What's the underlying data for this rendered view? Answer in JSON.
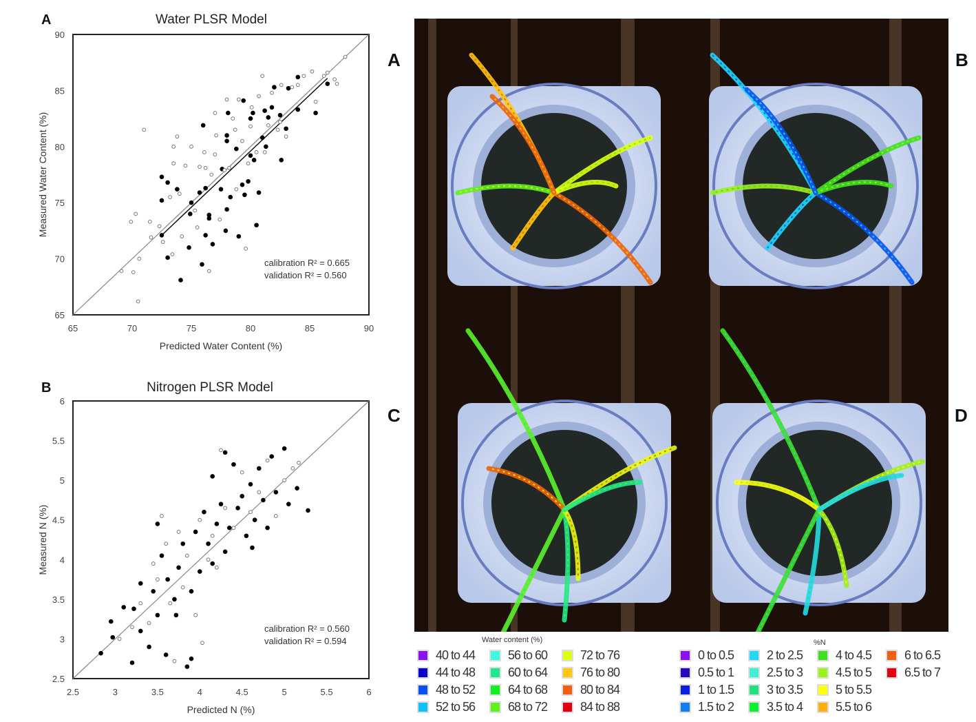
{
  "panel_letters": {
    "chart_a": "A",
    "chart_b": "B",
    "image_a": "A",
    "image_b": "B",
    "image_c": "C",
    "image_d": "D"
  },
  "chart_data": [
    {
      "type": "scatter",
      "title": "Water PLSR Model",
      "xlabel": "Predicted Water Content (%)",
      "ylabel": "Measured Water Content (%)",
      "xlim": [
        65,
        90
      ],
      "ylim": [
        65,
        90
      ],
      "xticks": [
        "65",
        "70",
        "75",
        "80",
        "85",
        "90"
      ],
      "yticks": [
        "65",
        "70",
        "75",
        "80",
        "85",
        "90"
      ],
      "grid": false,
      "annotations": [
        "calibration R² = 0.665",
        "validation R² = 0.560"
      ],
      "one_to_one_line": [
        [
          65,
          65
        ],
        [
          90,
          90
        ]
      ],
      "fit_lines": [
        [
          [
            72.5,
            72.1
          ],
          [
            86.5,
            86.1
          ]
        ],
        [
          [
            72.8,
            72.8
          ],
          [
            86.3,
            86.3
          ]
        ]
      ],
      "series": [
        {
          "marker": "filled",
          "points": [
            [
              72.5,
              72.1
            ],
            [
              72.5,
              75.2
            ],
            [
              72.5,
              77.3
            ],
            [
              73,
              76.8
            ],
            [
              73,
              70.1
            ],
            [
              73.8,
              76.2
            ],
            [
              74.1,
              68.1
            ],
            [
              75,
              75
            ],
            [
              74.9,
              74
            ],
            [
              74.8,
              71
            ],
            [
              75.7,
              75.9
            ],
            [
              76,
              81.9
            ],
            [
              75.9,
              69.5
            ],
            [
              76.2,
              72.1
            ],
            [
              76.2,
              76.3
            ],
            [
              76.5,
              73.6
            ],
            [
              76.5,
              73.9
            ],
            [
              76.8,
              71.3
            ],
            [
              77.5,
              76.2
            ],
            [
              77.6,
              78
            ],
            [
              78,
              80.5
            ],
            [
              78,
              81
            ],
            [
              78.1,
              83
            ],
            [
              78.3,
              75.5
            ],
            [
              78,
              74.4
            ],
            [
              77.9,
              72.5
            ],
            [
              79,
              72
            ],
            [
              79.5,
              75.7
            ],
            [
              79.3,
              76.6
            ],
            [
              79.8,
              76.9
            ],
            [
              80,
              82.5
            ],
            [
              80.2,
              83
            ],
            [
              80.3,
              78.8
            ],
            [
              80.5,
              73
            ],
            [
              80.7,
              75.9
            ],
            [
              81,
              80.8
            ],
            [
              81.5,
              82.6
            ],
            [
              81.8,
              83.5
            ],
            [
              82,
              85.3
            ],
            [
              82.5,
              82.8
            ],
            [
              83,
              81.6
            ],
            [
              83.2,
              85.2
            ],
            [
              84,
              86.2
            ],
            [
              84,
              83.3
            ],
            [
              85.5,
              83
            ],
            [
              86.5,
              85.6
            ],
            [
              78.8,
              79.8
            ],
            [
              80,
              79.2
            ],
            [
              81.3,
              80
            ],
            [
              82.6,
              78.8
            ],
            [
              79.4,
              84.1
            ],
            [
              81.2,
              83.2
            ]
          ]
        },
        {
          "marker": "open",
          "points": [
            [
              69.1,
              68.9
            ],
            [
              69.9,
              73.3
            ],
            [
              70.1,
              68.8
            ],
            [
              70.3,
              74
            ],
            [
              70.5,
              66.2
            ],
            [
              70.6,
              70
            ],
            [
              71,
              81.5
            ],
            [
              71.5,
              73.3
            ],
            [
              71.6,
              71.9
            ],
            [
              72.3,
              72.9
            ],
            [
              72.6,
              71.5
            ],
            [
              73.2,
              75.5
            ],
            [
              73.4,
              70.4
            ],
            [
              73.5,
              78.5
            ],
            [
              73.8,
              80.9
            ],
            [
              73.5,
              80
            ],
            [
              74,
              75.8
            ],
            [
              74.2,
              72
            ],
            [
              74.5,
              78.3
            ],
            [
              75,
              80
            ],
            [
              75.3,
              74.3
            ],
            [
              75.5,
              72.8
            ],
            [
              75.7,
              78.2
            ],
            [
              76.1,
              79.5
            ],
            [
              76.2,
              78.1
            ],
            [
              76.5,
              68.9
            ],
            [
              76.7,
              77.5
            ],
            [
              77,
              79.3
            ],
            [
              77.1,
              81
            ],
            [
              77,
              83
            ],
            [
              77.4,
              73.5
            ],
            [
              77.8,
              77.9
            ],
            [
              78,
              84.2
            ],
            [
              78.2,
              78.1
            ],
            [
              78.5,
              82.5
            ],
            [
              78.7,
              81.5
            ],
            [
              78.8,
              76.2
            ],
            [
              79,
              84.2
            ],
            [
              79.3,
              80.5
            ],
            [
              79.6,
              70.9
            ],
            [
              79.8,
              78.5
            ],
            [
              80,
              81.8
            ],
            [
              80.1,
              83.5
            ],
            [
              80.5,
              79.5
            ],
            [
              80.7,
              84.5
            ],
            [
              81,
              86.3
            ],
            [
              81.2,
              79.5
            ],
            [
              81.5,
              81.9
            ],
            [
              81.8,
              84.8
            ],
            [
              82.3,
              81.5
            ],
            [
              82.5,
              82.2
            ],
            [
              82.6,
              85.5
            ],
            [
              83,
              80.9
            ],
            [
              83.5,
              85.3
            ],
            [
              84,
              85.5
            ],
            [
              84.5,
              86.3
            ],
            [
              85.2,
              86.7
            ],
            [
              85.5,
              84
            ],
            [
              86.2,
              86.3
            ],
            [
              86.5,
              86.6
            ],
            [
              87.1,
              86
            ],
            [
              87.3,
              85.6
            ],
            [
              88,
              88
            ]
          ]
        }
      ]
    },
    {
      "type": "scatter",
      "title": "Nitrogen PLSR Model",
      "xlabel": "Predicted N (%)",
      "ylabel": "Measured N (%)",
      "xlim": [
        2.5,
        6
      ],
      "ylim": [
        2.5,
        6
      ],
      "xticks": [
        "2.5",
        "3",
        "3.5",
        "4",
        "4.5",
        "5",
        "5.5",
        "6"
      ],
      "yticks": [
        "2.5",
        "3",
        "3.5",
        "4",
        "4.5",
        "5",
        "5.5",
        "6"
      ],
      "grid": false,
      "annotations": [
        "calibration R² = 0.560",
        "validation R² = 0.594"
      ],
      "one_to_one_line": [
        [
          2.5,
          2.5
        ],
        [
          6,
          6
        ]
      ],
      "series": [
        {
          "marker": "filled",
          "points": [
            [
              2.83,
              2.82
            ],
            [
              2.95,
              3.22
            ],
            [
              2.97,
              3.02
            ],
            [
              3.1,
              3.4
            ],
            [
              3.2,
              2.7
            ],
            [
              3.22,
              3.38
            ],
            [
              3.3,
              3.1
            ],
            [
              3.4,
              2.9
            ],
            [
              3.45,
              3.6
            ],
            [
              3.5,
              3.3
            ],
            [
              3.5,
              4.45
            ],
            [
              3.55,
              4.05
            ],
            [
              3.6,
              2.8
            ],
            [
              3.62,
              3.75
            ],
            [
              3.7,
              3.5
            ],
            [
              3.75,
              3.9
            ],
            [
              3.8,
              4.2
            ],
            [
              3.85,
              2.65
            ],
            [
              3.9,
              2.75
            ],
            [
              3.9,
              3.6
            ],
            [
              3.95,
              4.35
            ],
            [
              4,
              3.85
            ],
            [
              4.05,
              4.6
            ],
            [
              4.1,
              4.2
            ],
            [
              4.15,
              3.95
            ],
            [
              4.2,
              4.45
            ],
            [
              4.25,
              4.7
            ],
            [
              4.3,
              4.1
            ],
            [
              4.35,
              4.4
            ],
            [
              4.4,
              5.2
            ],
            [
              4.45,
              4.65
            ],
            [
              4.5,
              4.8
            ],
            [
              4.55,
              4.3
            ],
            [
              4.6,
              4.95
            ],
            [
              4.65,
              4.5
            ],
            [
              4.7,
              5.15
            ],
            [
              4.75,
              4.75
            ],
            [
              4.8,
              4.4
            ],
            [
              4.85,
              5.3
            ],
            [
              4.9,
              4.85
            ],
            [
              5.0,
              5.4
            ],
            [
              5.05,
              4.7
            ],
            [
              5.15,
              4.9
            ],
            [
              5.28,
              4.62
            ],
            [
              4.15,
              5.05
            ],
            [
              3.72,
              3.3
            ],
            [
              3.3,
              3.7
            ],
            [
              4.62,
              4.15
            ],
            [
              4.3,
              5.35
            ]
          ]
        },
        {
          "marker": "open",
          "points": [
            [
              3.05,
              3.0
            ],
            [
              3.2,
              3.15
            ],
            [
              3.3,
              3.45
            ],
            [
              3.4,
              3.2
            ],
            [
              3.45,
              3.95
            ],
            [
              3.5,
              3.75
            ],
            [
              3.6,
              4.2
            ],
            [
              3.65,
              3.45
            ],
            [
              3.7,
              2.72
            ],
            [
              3.75,
              4.35
            ],
            [
              3.8,
              3.65
            ],
            [
              3.85,
              4.05
            ],
            [
              3.95,
              3.3
            ],
            [
              4.0,
              4.5
            ],
            [
              4.03,
              2.95
            ],
            [
              4.1,
              4.0
            ],
            [
              4.15,
              4.3
            ],
            [
              4.2,
              3.9
            ],
            [
              4.3,
              4.65
            ],
            [
              4.4,
              4.4
            ],
            [
              4.5,
              5.1
            ],
            [
              4.6,
              4.6
            ],
            [
              4.7,
              4.85
            ],
            [
              4.8,
              5.25
            ],
            [
              4.9,
              4.55
            ],
            [
              5.0,
              5.0
            ],
            [
              5.1,
              5.15
            ],
            [
              5.17,
              5.22
            ],
            [
              4.25,
              5.38
            ],
            [
              3.55,
              4.55
            ]
          ]
        }
      ]
    }
  ],
  "images": {
    "legend_water": {
      "title": "Water content (%)",
      "items": [
        {
          "label": "40 to 44",
          "color": "#8a10f0"
        },
        {
          "label": "44 to 48",
          "color": "#0a00c8"
        },
        {
          "label": "48 to 52",
          "color": "#0a50f0"
        },
        {
          "label": "52 to 56",
          "color": "#10c0f8"
        },
        {
          "label": "56 to 60",
          "color": "#40f8e0"
        },
        {
          "label": "60 to 64",
          "color": "#20e890"
        },
        {
          "label": "64 to 68",
          "color": "#10f020"
        },
        {
          "label": "68 to 72",
          "color": "#60f020"
        },
        {
          "label": "72 to 76",
          "color": "#e0ff10"
        },
        {
          "label": "76 to 80",
          "color": "#ffc810"
        },
        {
          "label": "80 to 84",
          "color": "#f06010"
        },
        {
          "label": "84 to 88",
          "color": "#e00010"
        }
      ]
    },
    "legend_n": {
      "title": "%N",
      "items": [
        {
          "label": "0 to 0.5",
          "color": "#8a10f0"
        },
        {
          "label": "0.5 to 1",
          "color": "#2a08c0"
        },
        {
          "label": "1 to 1.5",
          "color": "#0a20e0"
        },
        {
          "label": "1.5 to 2",
          "color": "#1080f0"
        },
        {
          "label": "2 to 2.5",
          "color": "#20d8f8"
        },
        {
          "label": "2.5 to 3",
          "color": "#40f0d0"
        },
        {
          "label": "3 to 3.5",
          "color": "#20e080"
        },
        {
          "label": "3.5 to 4",
          "color": "#10f030"
        },
        {
          "label": "4 to 4.5",
          "color": "#40e020"
        },
        {
          "label": "4.5 to 5",
          "color": "#a0f020"
        },
        {
          "label": "5 to 5.5",
          "color": "#ffff10"
        },
        {
          "label": "5.5 to 6",
          "color": "#ffb010"
        },
        {
          "label": "6 to 6.5",
          "color": "#f06010"
        },
        {
          "label": "6.5 to 7",
          "color": "#e00010"
        }
      ]
    }
  }
}
